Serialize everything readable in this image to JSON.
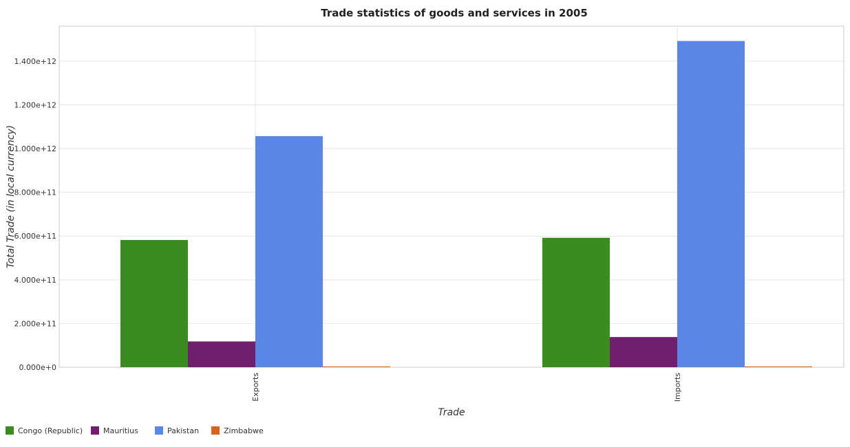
{
  "chart_data": {
    "type": "bar",
    "title": "Trade statistics of goods and services in 2005",
    "xlabel": "Trade",
    "ylabel": "Total Trade (in local currency)",
    "categories": [
      "Exports",
      "Imports"
    ],
    "series": [
      {
        "name": "Congo (Republic)",
        "color": "#3a8c1e",
        "values": [
          582000000000,
          592000000000
        ]
      },
      {
        "name": "Mauritius",
        "color": "#6f1f6c",
        "values": [
          118000000000,
          138000000000
        ]
      },
      {
        "name": "Pakistan",
        "color": "#5b86e5",
        "values": [
          1057000000000,
          1492000000000
        ]
      },
      {
        "name": "Zimbabwe",
        "color": "#d9621c",
        "values": [
          3500000000,
          3500000000
        ]
      }
    ],
    "ylim": [
      0,
      1560000000000
    ],
    "yticks": [
      {
        "value": 0,
        "label": "0.000e+0"
      },
      {
        "value": 200000000000,
        "label": "2.000e+11"
      },
      {
        "value": 400000000000,
        "label": "4.000e+11"
      },
      {
        "value": 600000000000,
        "label": "6.000e+11"
      },
      {
        "value": 800000000000,
        "label": "8.000e+11"
      },
      {
        "value": 1000000000000,
        "label": "1.000e+12"
      },
      {
        "value": 1200000000000,
        "label": "1.200e+12"
      },
      {
        "value": 1400000000000,
        "label": "1.400e+12"
      }
    ],
    "grid": true,
    "legend_position": "bottom-left"
  }
}
